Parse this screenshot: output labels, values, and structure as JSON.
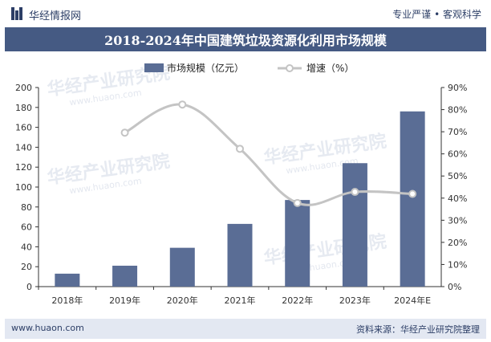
{
  "header": {
    "brand": "华经情报网",
    "tagline": "专业严谨 • 客观科学"
  },
  "title": "2018-2024年中国建筑垃圾资源化利用市场规模",
  "watermark": "华经产业研究院",
  "watermark_url": "www.huaon.com",
  "colors": {
    "bar": "#5a6d95",
    "line": "#c4c4c4",
    "title_bg": "#455a83",
    "footer_bg": "#e3e8f2"
  },
  "chart_data": {
    "type": "bar",
    "categories": [
      "2018年",
      "2019年",
      "2020年",
      "2021年",
      "2022年",
      "2023年",
      "2024年E"
    ],
    "series": [
      {
        "name": "市场规模（亿元）",
        "type": "bar",
        "axis": "left",
        "values": [
          13,
          21,
          39,
          63,
          87,
          124,
          176
        ]
      },
      {
        "name": "增速（%）",
        "type": "line",
        "axis": "right",
        "values": [
          null,
          69.6,
          82.3,
          62.3,
          37.8,
          42.8,
          41.9
        ]
      }
    ],
    "y_left": {
      "min": 0,
      "max": 200,
      "step": 20
    },
    "y_right": {
      "min": 0,
      "max": 90,
      "step": 10,
      "unit": "%"
    },
    "legend_position": "top-center",
    "grid": false
  },
  "footer": {
    "url": "www.huaon.com",
    "source": "资料来源：华经产业研究院整理"
  }
}
